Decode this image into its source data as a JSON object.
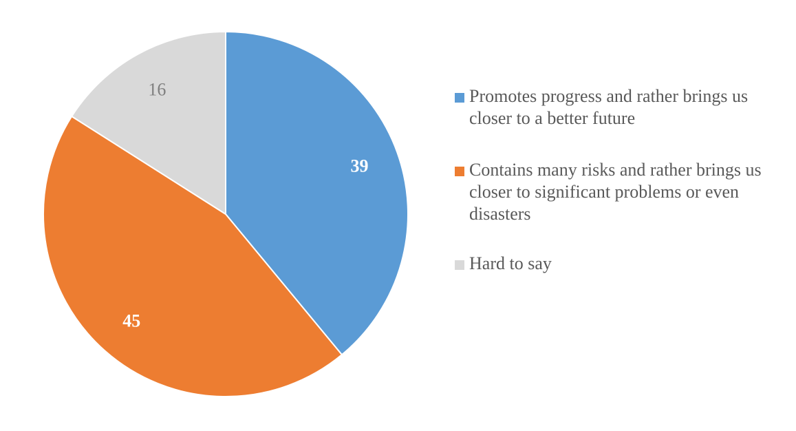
{
  "chart_data": {
    "type": "pie",
    "title": "",
    "categories": [
      "Promotes progress and rather brings us closer to a better future",
      "Contains many risks and rather brings us closer to significant problems or even disasters",
      "Hard to say"
    ],
    "values": [
      39,
      45,
      16
    ],
    "data_labels": [
      "39",
      "45",
      "16"
    ],
    "colors": [
      "#5b9bd5",
      "#ed7d31",
      "#d9d9d9"
    ],
    "label_colors": [
      "#ffffff",
      "#ffffff",
      "#7f7f7f"
    ],
    "label_bold": [
      true,
      true,
      false
    ],
    "start_angle": "12 o'clock",
    "direction": "clockwise",
    "legend": {
      "position": "right",
      "entries": [
        "Promotes progress and rather brings us closer to a better future",
        "Contains many risks and rather brings us closer to significant problems or even disasters",
        "Hard to say"
      ]
    }
  }
}
